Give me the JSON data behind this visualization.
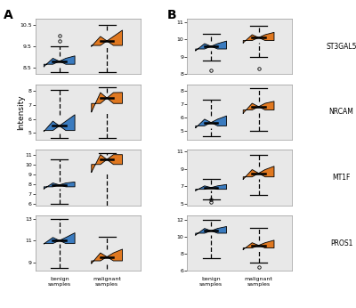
{
  "panel_A": {
    "genes": [
      "ST3GAL5",
      "NRCAM",
      "MT1F",
      "PROS1"
    ],
    "benign": {
      "ST3GAL5": {
        "wlow": 8.3,
        "q1": 8.55,
        "med": 8.8,
        "q3": 9.05,
        "whigh": 9.5,
        "outliers": [
          10.0,
          9.75
        ]
      },
      "NRCAM": {
        "wlow": 4.6,
        "q1": 5.1,
        "med": 5.5,
        "q3": 6.3,
        "whigh": 8.1,
        "outliers": []
      },
      "MT1F": {
        "wlow": 6.0,
        "q1": 7.5,
        "med": 7.9,
        "q3": 8.2,
        "whigh": 10.5,
        "outliers": []
      },
      "PROS1": {
        "wlow": 8.5,
        "q1": 10.7,
        "med": 11.0,
        "q3": 11.7,
        "whigh": 13.0,
        "outliers": []
      }
    },
    "malignant": {
      "ST3GAL5": {
        "wlow": 8.3,
        "q1": 9.5,
        "med": 9.75,
        "q3": 10.25,
        "whigh": 10.5,
        "outliers": []
      },
      "NRCAM": {
        "wlow": 4.6,
        "q1": 6.5,
        "med": 7.5,
        "q3": 7.9,
        "whigh": 8.3,
        "outliers": []
      },
      "MT1F": {
        "wlow": 5.1,
        "q1": 9.2,
        "med": 10.5,
        "q3": 11.0,
        "whigh": 11.2,
        "outliers": []
      },
      "PROS1": {
        "wlow": 7.2,
        "q1": 8.9,
        "med": 9.5,
        "q3": 10.2,
        "whigh": 11.3,
        "outliers": []
      }
    },
    "ylims": {
      "ST3GAL5": [
        8.2,
        10.8
      ],
      "NRCAM": [
        4.5,
        8.5
      ],
      "MT1F": [
        5.8,
        11.5
      ],
      "PROS1": [
        8.2,
        13.3
      ]
    },
    "yticks": {
      "ST3GAL5": [
        8.5,
        9.5,
        10.5
      ],
      "NRCAM": [
        5,
        6,
        7,
        8
      ],
      "MT1F": [
        6,
        7,
        8,
        9,
        10,
        11
      ],
      "PROS1": [
        9,
        11,
        13
      ]
    }
  },
  "panel_B": {
    "genes": [
      "ST3GAL5",
      "NRCAM",
      "MT1F",
      "PROS1"
    ],
    "benign": {
      "ST3GAL5": {
        "wlow": 8.8,
        "q1": 9.35,
        "med": 9.6,
        "q3": 9.9,
        "whigh": 10.3,
        "outliers": [
          8.2
        ]
      },
      "NRCAM": {
        "wlow": 4.6,
        "q1": 5.2,
        "med": 5.6,
        "q3": 6.1,
        "whigh": 7.3,
        "outliers": []
      },
      "MT1F": {
        "wlow": 5.5,
        "q1": 6.5,
        "med": 6.85,
        "q3": 7.2,
        "whigh": 7.8,
        "outliers": [
          5.5,
          5.2
        ]
      },
      "PROS1": {
        "wlow": 7.5,
        "q1": 10.2,
        "med": 10.7,
        "q3": 11.2,
        "whigh": 12.0,
        "outliers": []
      }
    },
    "malignant": {
      "ST3GAL5": {
        "wlow": 9.0,
        "q1": 9.8,
        "med": 10.1,
        "q3": 10.4,
        "whigh": 10.8,
        "outliers": [
          8.3
        ]
      },
      "NRCAM": {
        "wlow": 5.0,
        "q1": 6.3,
        "med": 6.8,
        "q3": 7.2,
        "whigh": 8.2,
        "outliers": []
      },
      "MT1F": {
        "wlow": 6.0,
        "q1": 7.8,
        "med": 8.5,
        "q3": 9.3,
        "whigh": 10.6,
        "outliers": []
      },
      "PROS1": {
        "wlow": 7.0,
        "q1": 8.5,
        "med": 9.0,
        "q3": 9.6,
        "whigh": 11.0,
        "outliers": [
          6.5
        ]
      }
    },
    "ylims": {
      "ST3GAL5": [
        8.0,
        11.2
      ],
      "NRCAM": [
        4.3,
        8.5
      ],
      "MT1F": [
        4.8,
        11.2
      ],
      "PROS1": [
        6.2,
        12.5
      ]
    },
    "yticks": {
      "ST3GAL5": [
        8,
        9,
        10,
        11
      ],
      "NRCAM": [
        5,
        6,
        7,
        8
      ],
      "MT1F": [
        5,
        7,
        9,
        11
      ],
      "PROS1": [
        6,
        8,
        10,
        12
      ]
    }
  },
  "blue_color": "#3a7bbf",
  "orange_color": "#e07820",
  "bg_color": "#e8e8e8",
  "ylabel": "Intensity",
  "xlabel_benign": "benign\nsamples",
  "xlabel_malignant": "malignant\nsamples",
  "gene_labels": [
    "ST3GAL5",
    "NRCAM",
    "MT1F",
    "PROS1"
  ],
  "panel_a_label": "A",
  "panel_b_label": "B"
}
